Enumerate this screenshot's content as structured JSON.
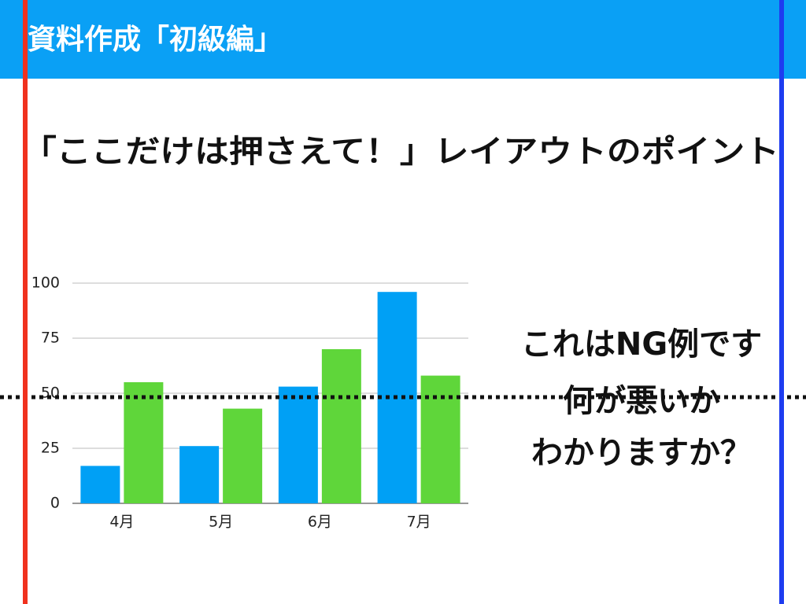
{
  "header": {
    "title": "資料作成「初級編」"
  },
  "subtitle": "「ここだけは押さえて！」レイアウトのポイント",
  "callout": {
    "lines": [
      "これはNG例です",
      "何が悪いか",
      "わかりますか？"
    ]
  },
  "chart_data": {
    "type": "bar",
    "categories": [
      "4月",
      "5月",
      "6月",
      "7月"
    ],
    "series": [
      {
        "color": "#00a0f5",
        "values": [
          17,
          26,
          53,
          96
        ]
      },
      {
        "color": "#5fd63a",
        "values": [
          55,
          43,
          70,
          58
        ]
      }
    ],
    "ylim": [
      0,
      100
    ],
    "yticks": [
      0,
      25,
      50,
      75,
      100
    ],
    "grid": true
  }
}
